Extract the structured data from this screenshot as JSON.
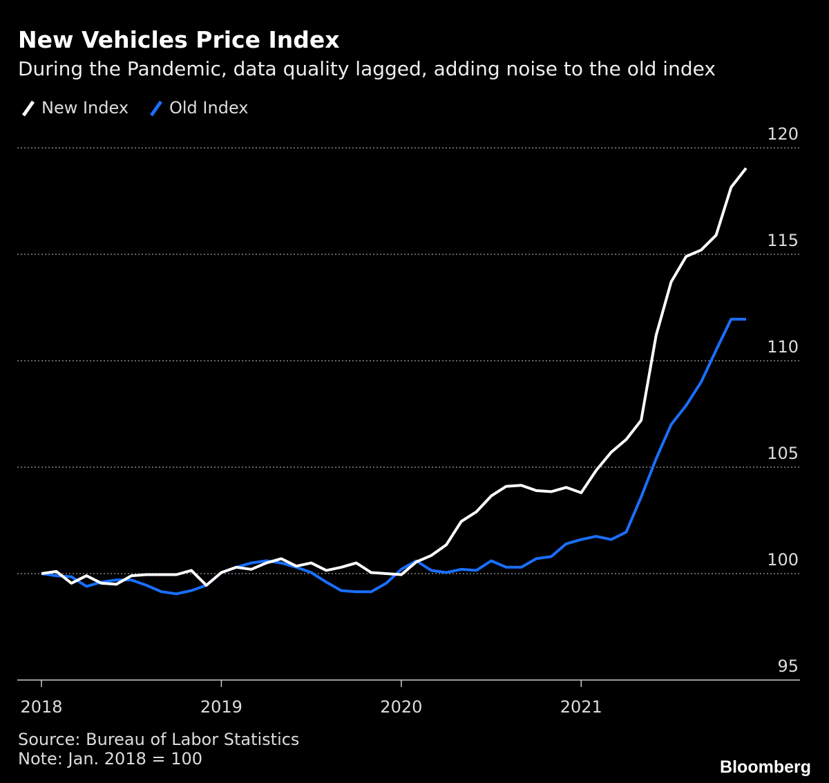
{
  "chart_data": {
    "type": "line",
    "title": "New Vehicles Price Index",
    "subtitle": "During the Pandemic, data quality lagged, adding noise to the old index",
    "categories": [
      "2018",
      null,
      null,
      null,
      null,
      null,
      null,
      null,
      null,
      null,
      null,
      null,
      "2019",
      null,
      null,
      null,
      null,
      null,
      null,
      null,
      null,
      null,
      null,
      null,
      "2020",
      null,
      null,
      null,
      null,
      null,
      null,
      null,
      null,
      null,
      null,
      null,
      "2021",
      null,
      null,
      null,
      null,
      null,
      null,
      null,
      null,
      null,
      null,
      null
    ],
    "series": [
      {
        "name": "New Index",
        "color": "#ffffff",
        "values": [
          100,
          100.1,
          99.55,
          99.9,
          99.55,
          99.5,
          99.9,
          99.95,
          99.95,
          99.95,
          100.15,
          99.45,
          100.05,
          100.3,
          100.2,
          100.5,
          100.7,
          100.35,
          100.5,
          100.15,
          100.3,
          100.5,
          100.05,
          100.0,
          99.95,
          100.55,
          100.85,
          101.35,
          102.45,
          102.9,
          103.65,
          104.1,
          104.15,
          103.9,
          103.85,
          104.05,
          103.8,
          104.85,
          105.7,
          106.3,
          107.2,
          111.2,
          113.7,
          114.9,
          115.2,
          115.9,
          118.15,
          119.05
        ]
      },
      {
        "name": "Old Index",
        "color": "#1a6fff",
        "values": [
          100,
          99.9,
          99.85,
          99.4,
          99.6,
          99.7,
          99.7,
          99.45,
          99.15,
          99.05,
          99.2,
          99.45,
          100.05,
          100.3,
          100.5,
          100.6,
          100.5,
          100.3,
          100.05,
          99.6,
          99.2,
          99.15,
          99.15,
          99.55,
          100.2,
          100.6,
          100.15,
          100.05,
          100.2,
          100.15,
          100.6,
          100.3,
          100.3,
          100.7,
          100.8,
          101.4,
          101.6,
          101.75,
          101.6,
          101.95,
          103.6,
          105.4,
          107.0,
          107.9,
          109.0,
          110.5,
          111.95,
          111.95
        ]
      }
    ],
    "ylim": [
      95,
      120
    ],
    "yticks": [
      95,
      100,
      105,
      110,
      115,
      120
    ],
    "grid": true,
    "legend": "top-left",
    "source": "Source: Bureau of Labor Statistics",
    "note": "Note: Jan. 2018 = 100",
    "brand": "Bloomberg"
  }
}
